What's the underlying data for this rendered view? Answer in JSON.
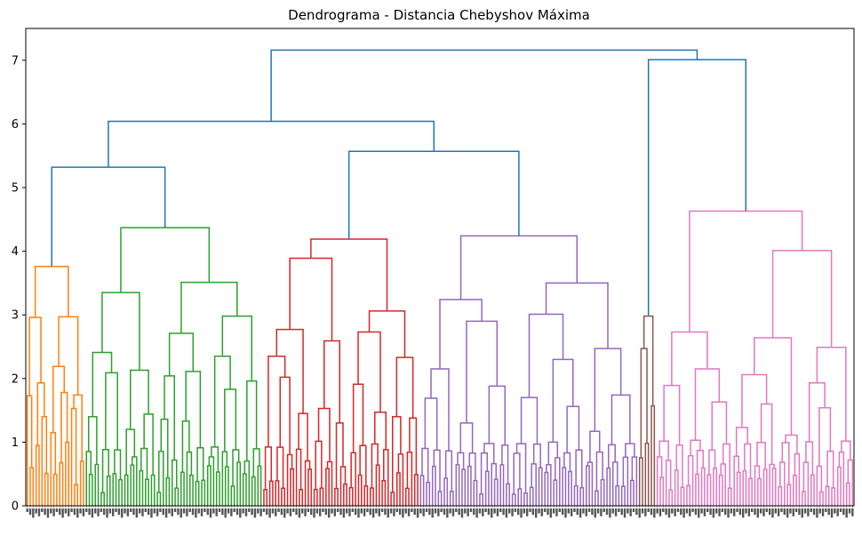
{
  "chart_data": {
    "type": "dendrogram",
    "title": "Dendrograma - Distancia Chebyshov Máxima",
    "xlabel": "",
    "ylabel": "",
    "ylim": [
      0,
      7.5
    ],
    "yticks": [
      0,
      1,
      2,
      3,
      4,
      5,
      6,
      7
    ],
    "grid": false,
    "colors": {
      "orange": "#ff7f0e",
      "green": "#2ca02c",
      "red": "#d62728",
      "purple": "#9467bd",
      "brown": "#8c564b",
      "pink": "#e377c2",
      "link_above_threshold": "#1f77b4"
    },
    "clusters": [
      {
        "color": "orange",
        "leaf_count": 20,
        "merge_height": 3.76,
        "sub_heights": [
          2.96,
          2.97,
          1.93,
          2.19,
          1.78,
          1.74,
          1.15,
          0.7,
          1.4,
          0.95,
          1.73,
          1.53,
          1.0,
          0.6
        ]
      },
      {
        "color": "green",
        "leaf_count": 60,
        "merge_height": 4.37,
        "sub_heights": [
          3.35,
          3.51,
          2.71,
          2.98,
          2.41,
          2.35,
          2.13,
          2.11,
          2.09,
          2.04,
          1.96,
          1.83,
          1.44,
          1.4,
          1.36,
          1.33,
          1.2,
          0.9,
          0.85
        ]
      },
      {
        "color": "red",
        "leaf_count": 53,
        "merge_height": 4.19,
        "sub_heights": [
          3.06,
          3.89,
          2.73,
          2.77,
          2.59,
          2.35,
          2.33,
          2.02,
          1.91,
          1.53,
          1.47,
          1.45,
          1.4,
          1.38,
          1.3,
          0.97
        ]
      },
      {
        "color": "purple",
        "leaf_count": 74,
        "merge_height": 4.24,
        "sub_heights": [
          3.5,
          3.24,
          3.01,
          2.9,
          2.47,
          2.3,
          2.15,
          1.88,
          1.74,
          1.7,
          1.69,
          1.56,
          1.3,
          1.17,
          1.0,
          0.9
        ]
      },
      {
        "color": "brown",
        "leaf_count": 6,
        "merge_height": 2.98,
        "sub_heights": [
          2.47,
          1.57
        ]
      },
      {
        "color": "pink",
        "leaf_count": 67,
        "merge_height": 4.63,
        "sub_heights": [
          4.01,
          2.73,
          2.64,
          2.49,
          2.15,
          2.06,
          1.93,
          1.89,
          1.63,
          1.6,
          1.54,
          1.23,
          1.11,
          1.03,
          0.97
        ]
      }
    ],
    "top_links": [
      {
        "left": "orange",
        "right": "green",
        "height": 5.32
      },
      {
        "left": "red",
        "right": "purple",
        "height": 5.57
      },
      {
        "left": "orange+green",
        "right": "red+purple",
        "height": 6.04
      },
      {
        "left": "brown",
        "right": "pink",
        "height": 7.01
      },
      {
        "left": "orange+green+red+purple",
        "right": "brown+pink",
        "height": 7.16
      }
    ]
  }
}
